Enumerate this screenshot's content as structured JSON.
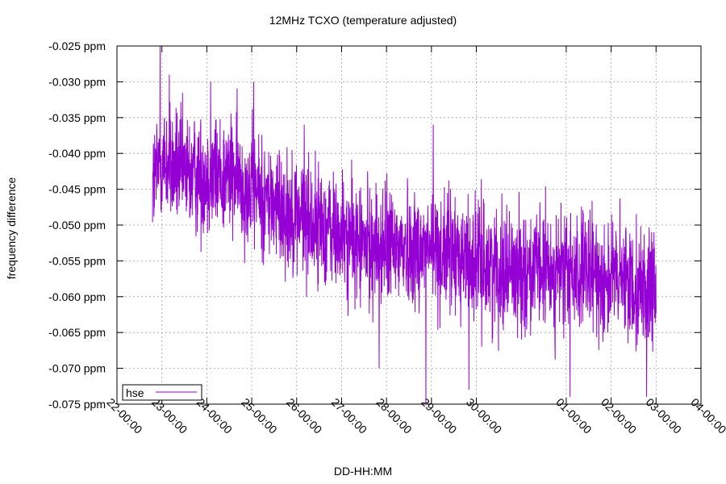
{
  "chart_data": {
    "type": "line",
    "title": "12MHz TCXO (temperature adjusted)",
    "xlabel": "DD-HH:MM",
    "ylabel": "frequency difference",
    "ylim": [
      -0.075,
      -0.025
    ],
    "yticks": [
      -0.025,
      -0.03,
      -0.035,
      -0.04,
      -0.045,
      -0.05,
      -0.055,
      -0.06,
      -0.065,
      -0.07,
      -0.075
    ],
    "ytick_labels": [
      "-0.025 ppm",
      "-0.030 ppm",
      "-0.035 ppm",
      "-0.040 ppm",
      "-0.045 ppm",
      "-0.050 ppm",
      "-0.055 ppm",
      "-0.060 ppm",
      "-0.065 ppm",
      "-0.070 ppm",
      "-0.075 ppm"
    ],
    "xticks": [
      "22-00:00",
      "23-00:00",
      "24-00:00",
      "25-00:00",
      "26-00:00",
      "27-00:00",
      "28-00:00",
      "29-00:00",
      "30-00:00",
      "01-00:00",
      "02-00:00",
      "03-00:00",
      "04-00:00"
    ],
    "grid": true,
    "legend": "bottom-left",
    "series": [
      {
        "name": "hse",
        "color": "#9400d3",
        "x_start": "22-19:00",
        "x_end": "03-00:00",
        "trend": [
          [
            "22-19:00",
            -0.044
          ],
          [
            "23-00:00",
            -0.041
          ],
          [
            "23-12:00",
            -0.043
          ],
          [
            "24-12:00",
            -0.043
          ],
          [
            "25-12:00",
            -0.047
          ],
          [
            "26-12:00",
            -0.05
          ],
          [
            "27-12:00",
            -0.053
          ],
          [
            "28-12:00",
            -0.053
          ],
          [
            "29-12:00",
            -0.054
          ],
          [
            "30-12:00",
            -0.056
          ],
          [
            "01-12:00",
            -0.057
          ],
          [
            "02-12:00",
            -0.058
          ],
          [
            "03-00:00",
            -0.06
          ]
        ],
        "peaks": [
          [
            "22-23:00",
            -0.025
          ],
          [
            "23-04:00",
            -0.029
          ],
          [
            "24-02:00",
            -0.03
          ],
          [
            "25-01:00",
            -0.03
          ],
          [
            "26-04:00",
            -0.036
          ],
          [
            "29-01:00",
            -0.036
          ],
          [
            "28-21:00",
            -0.075
          ],
          [
            "27-20:00",
            -0.07
          ],
          [
            "29-20:00",
            -0.073
          ],
          [
            "01-02:00",
            -0.074
          ],
          [
            "02-19:00",
            -0.074
          ]
        ]
      }
    ]
  }
}
